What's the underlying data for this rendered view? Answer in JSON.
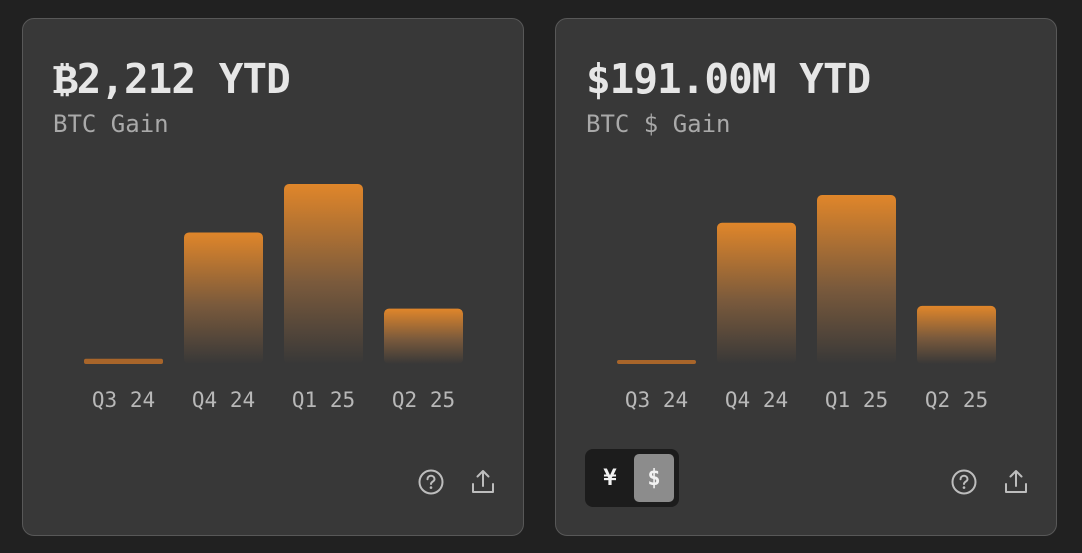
{
  "colors": {
    "background": "#212121",
    "card": "#383838",
    "bar_top": "#e0862a",
    "bar_bottom": "#383838",
    "tick_label": "#b8b8b8",
    "icon": "#bdbdbd"
  },
  "cards": [
    {
      "headline": "₿2,212 YTD",
      "subtitle": "BTC Gain",
      "icons": [
        "help-icon",
        "share-icon"
      ]
    },
    {
      "headline": "$191.00M YTD",
      "subtitle": "BTC $ Gain",
      "currency_toggle": {
        "options": [
          "¥",
          "$"
        ],
        "selected": "$"
      },
      "icons": [
        "help-icon",
        "share-icon"
      ]
    }
  ],
  "chart_data": [
    {
      "type": "bar",
      "categories": [
        "Q3 24",
        "Q4 24",
        "Q1 25",
        "Q2 25"
      ],
      "values": [
        30,
        760,
        1040,
        320
      ],
      "ylim": [
        0,
        1040
      ],
      "grid": false,
      "legend": "none"
    },
    {
      "type": "bar",
      "categories": [
        "Q3 24",
        "Q4 24",
        "Q1 25",
        "Q2 25"
      ],
      "values": [
        1.5,
        81.5,
        97.5,
        33.5
      ],
      "ylim": [
        0,
        97.5
      ],
      "grid": false,
      "legend": "none"
    }
  ]
}
